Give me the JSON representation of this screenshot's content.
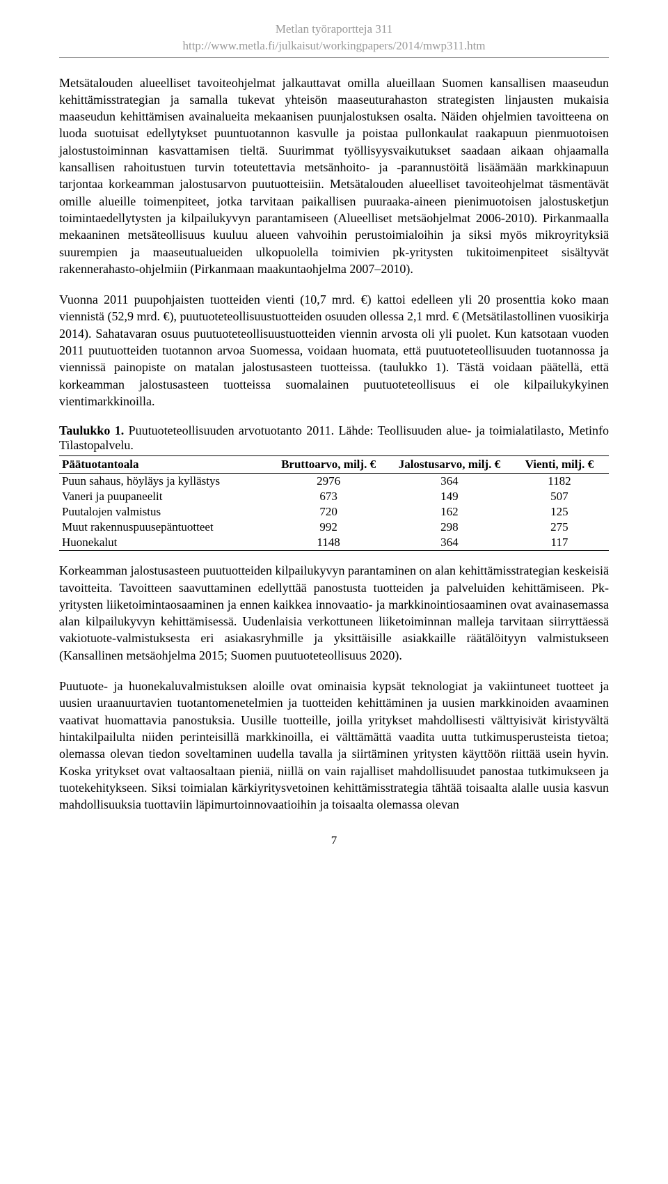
{
  "header": {
    "line1": "Metlan työraportteja 311",
    "line2": "http://www.metla.fi/julkaisut/workingpapers/2014/mwp311.htm"
  },
  "paragraphs": {
    "p1": "Metsätalouden alueelliset tavoiteohjelmat jalkauttavat omilla alueillaan Suomen kansallisen maaseudun kehittämisstrategian ja samalla tukevat yhteisön maaseuturahaston strategisten linjausten mukaisia maaseudun kehittämisen avainalueita mekaanisen puunjalostuksen osalta. Näiden ohjelmien tavoitteena on luoda suotuisat edellytykset puuntuotannon kasvulle ja poistaa pullonkaulat raakapuun pienmuotoisen jalostustoiminnan kasvattamisen tieltä. Suurimmat työllisyysvaikutukset saadaan aikaan ohjaamalla kansallisen rahoitustuen turvin toteutettavia metsänhoito- ja -parannustöitä lisäämään markkinapuun tarjontaa korkeamman jalostusarvon puutuotteisiin. Metsätalouden alueelliset tavoiteohjelmat täsmentävät omille alueille toimenpiteet, jotka tarvitaan paikallisen puuraaka-aineen pienimuotoisen jalostusketjun toimintaedellytysten ja kilpailukyvyn parantamiseen (Alueelliset metsäohjelmat 2006-2010). Pirkanmaalla mekaaninen metsäteollisuus kuuluu alueen vahvoihin perustoimialoihin ja siksi myös mikroyrityksiä suurempien ja maaseutualueiden ulkopuolella toimivien pk-yritysten tukitoimenpiteet sisältyvät rakennerahasto-ohjelmiin (Pirkanmaan maakuntaohjelma 2007–2010).",
    "p2": "Vuonna 2011 puupohjaisten tuotteiden vienti (10,7 mrd. €) kattoi edelleen yli 20 prosenttia koko maan viennistä (52,9 mrd. €), puutuoteteollisuustuotteiden osuuden ollessa 2,1 mrd. € (Metsätilastollinen vuosikirja 2014). Sahatavaran osuus puutuoteteollisuustuotteiden viennin arvosta oli yli puolet. Kun katsotaan vuoden 2011 puutuotteiden tuotannon arvoa Suomessa, voidaan huomata, että puutuoteteollisuuden tuotannossa ja viennissä painopiste on matalan jalostusasteen tuotteissa. (taulukko 1). Tästä voidaan päätellä, että korkeamman jalostusasteen tuotteissa suomalainen puutuoteteollisuus ei ole kilpailukykyinen vientimarkkinoilla.",
    "p3": "Korkeamman jalostusasteen puutuotteiden kilpailukyvyn parantaminen on alan kehittämisstrategian keskeisiä tavoitteita. Tavoitteen saavuttaminen edellyttää panostusta tuotteiden ja palveluiden kehittämiseen. Pk-yritysten liiketoimintaosaaminen ja ennen kaikkea innovaatio- ja markkinointiosaaminen ovat avainasemassa alan kilpailukyvyn kehittämisessä. Uudenlaisia verkottuneen liiketoiminnan malleja tarvitaan siirryttäessä vakiotuote-valmistuksesta eri asiakasryhmille ja yksittäisille asiakkaille räätälöityyn valmistukseen (Kansallinen metsäohjelma 2015; Suomen puutuoteteollisuus 2020).",
    "p4": "Puutuote- ja huonekaluvalmistuksen aloille ovat ominaisia kypsät teknologiat ja vakiintuneet tuotteet ja uusien uraanuurtavien tuotantomenetelmien ja tuotteiden kehittäminen ja uusien markkinoiden avaaminen vaativat huomattavia panostuksia. Uusille tuotteille, joilla yritykset mahdollisesti välttyisivät kiristyvältä hintakilpailulta niiden perinteisillä markkinoilla, ei välttämättä vaadita uutta tutkimusperusteista tietoa; olemassa olevan tiedon soveltaminen uudella tavalla ja siirtäminen yritysten käyttöön riittää usein hyvin. Koska yritykset ovat valtaosaltaan pieniä, niillä on vain rajalliset mahdollisuudet panostaa tutkimukseen ja tuotekehitykseen. Siksi toimialan kärkiyritysvetoinen kehittämisstrategia tähtää toisaalta alalle uusia kasvun mahdollisuuksia tuottaviin läpimurtoinnovaatioihin ja toisaalta olemassa olevan"
  },
  "table": {
    "caption_bold": "Taulukko 1.",
    "caption_rest": " Puutuoteteollisuuden arvotuotanto 2011. Lähde: Teollisuuden alue- ja toimialatilasto, Metinfo Tilastopalvelu.",
    "columns": [
      "Päätuotantoala",
      "Bruttoarvo, milj. €",
      "Jalostusarvo, milj. €",
      "Vienti, milj. €"
    ],
    "rows": [
      [
        "Puun sahaus, höyläys ja kyllästys",
        "2976",
        "364",
        "1182"
      ],
      [
        "Vaneri ja puupaneelit",
        "673",
        "149",
        "507"
      ],
      [
        "Puutalojen valmistus",
        "720",
        "162",
        "125"
      ],
      [
        "Muut rakennuspuusepäntuotteet",
        "992",
        "298",
        "275"
      ],
      [
        "Huonekalut",
        "1148",
        "364",
        "117"
      ]
    ],
    "col_widths": [
      "38%",
      "22%",
      "22%",
      "18%"
    ]
  },
  "page_number": "7"
}
